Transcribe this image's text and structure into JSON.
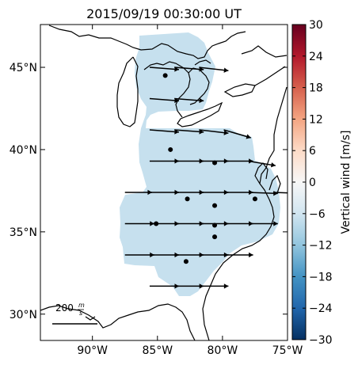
{
  "chart_data": {
    "type": "heatmap",
    "title": "2015/09/19 00:30:00 UT",
    "xlim": [
      -94,
      -75
    ],
    "ylim": [
      28.4,
      47.6
    ],
    "x_ticks": [
      {
        "value": -90,
        "label": "90°W"
      },
      {
        "value": -85,
        "label": "85°W"
      },
      {
        "value": -80,
        "label": "80°W"
      },
      {
        "value": -75,
        "label": "75°W"
      }
    ],
    "y_ticks": [
      {
        "value": 30,
        "label": "30°N"
      },
      {
        "value": 35,
        "label": "35°N"
      },
      {
        "value": 40,
        "label": "40°N"
      },
      {
        "value": 45,
        "label": "45°N"
      }
    ],
    "field_value": -7,
    "field_color": "#c6e0ee",
    "colorbar": {
      "label": "Vertical wind [m/s]",
      "min": -30,
      "max": 30,
      "ticks": [
        30,
        24,
        18,
        12,
        6,
        0,
        -6,
        -12,
        -18,
        -24,
        -30
      ],
      "tick_labels": [
        "30",
        "24",
        "18",
        "12",
        "6",
        "0",
        "−6",
        "−12",
        "−18",
        "−24",
        "−30"
      ],
      "colors": [
        "#053061",
        "#2166ac",
        "#4393c3",
        "#92c5de",
        "#d1e5f0",
        "#f7f7f7",
        "#fddbc7",
        "#f4a582",
        "#d6604d",
        "#b2182b",
        "#67001f"
      ]
    },
    "scale_arrow": {
      "label_value": "200",
      "label_unit_num": "m",
      "label_unit_den": "s",
      "value": 200
    },
    "sites": [
      {
        "lon": -84.4,
        "lat": 44.5
      },
      {
        "lon": -84.0,
        "lat": 40.0
      },
      {
        "lon": -80.6,
        "lat": 39.2
      },
      {
        "lon": -82.7,
        "lat": 37.0
      },
      {
        "lon": -77.5,
        "lat": 37.0
      },
      {
        "lon": -80.6,
        "lat": 36.6
      },
      {
        "lon": -85.1,
        "lat": 35.5
      },
      {
        "lon": -80.6,
        "lat": 35.4
      },
      {
        "lon": -80.6,
        "lat": 34.7
      },
      {
        "lon": -82.8,
        "lat": 33.2
      }
    ],
    "vectors": [
      {
        "lon": -85.6,
        "lat": 45.0,
        "u": 130,
        "v": -10
      },
      {
        "lon": -83.7,
        "lat": 45.0,
        "u": 130,
        "v": -10
      },
      {
        "lon": -81.8,
        "lat": 45.0,
        "u": 130,
        "v": -15
      },
      {
        "lon": -85.6,
        "lat": 43.1,
        "u": 130,
        "v": -10
      },
      {
        "lon": -83.7,
        "lat": 43.1,
        "u": 130,
        "v": -10
      },
      {
        "lon": -85.6,
        "lat": 41.2,
        "u": 130,
        "v": -10
      },
      {
        "lon": -83.7,
        "lat": 41.2,
        "u": 130,
        "v": -10
      },
      {
        "lon": -81.8,
        "lat": 41.2,
        "u": 130,
        "v": -15
      },
      {
        "lon": -79.9,
        "lat": 41.2,
        "u": 120,
        "v": -35
      },
      {
        "lon": -85.6,
        "lat": 39.3,
        "u": 130,
        "v": 0
      },
      {
        "lon": -83.7,
        "lat": 39.3,
        "u": 130,
        "v": 0
      },
      {
        "lon": -81.8,
        "lat": 39.3,
        "u": 130,
        "v": 0
      },
      {
        "lon": -79.9,
        "lat": 39.3,
        "u": 130,
        "v": 0
      },
      {
        "lon": -78.0,
        "lat": 39.3,
        "u": 120,
        "v": -20
      },
      {
        "lon": -87.5,
        "lat": 37.4,
        "u": 120,
        "v": 0
      },
      {
        "lon": -85.6,
        "lat": 37.4,
        "u": 130,
        "v": 0
      },
      {
        "lon": -83.7,
        "lat": 37.4,
        "u": 130,
        "v": 0
      },
      {
        "lon": -81.8,
        "lat": 37.4,
        "u": 130,
        "v": 0
      },
      {
        "lon": -79.9,
        "lat": 37.4,
        "u": 130,
        "v": 0
      },
      {
        "lon": -78.0,
        "lat": 37.4,
        "u": 130,
        "v": -5
      },
      {
        "lon": -76.1,
        "lat": 37.4,
        "u": 130,
        "v": -5
      },
      {
        "lon": -87.5,
        "lat": 35.5,
        "u": 130,
        "v": 0
      },
      {
        "lon": -85.6,
        "lat": 35.5,
        "u": 130,
        "v": 0
      },
      {
        "lon": -83.7,
        "lat": 35.5,
        "u": 130,
        "v": 0
      },
      {
        "lon": -81.8,
        "lat": 35.5,
        "u": 130,
        "v": 0
      },
      {
        "lon": -79.9,
        "lat": 35.5,
        "u": 130,
        "v": 0
      },
      {
        "lon": -78.0,
        "lat": 35.5,
        "u": 130,
        "v": 0
      },
      {
        "lon": -87.5,
        "lat": 33.6,
        "u": 130,
        "v": 0
      },
      {
        "lon": -85.6,
        "lat": 33.6,
        "u": 130,
        "v": 0
      },
      {
        "lon": -83.7,
        "lat": 33.6,
        "u": 130,
        "v": 0
      },
      {
        "lon": -81.8,
        "lat": 33.6,
        "u": 130,
        "v": 0
      },
      {
        "lon": -79.9,
        "lat": 33.6,
        "u": 130,
        "v": 0
      },
      {
        "lon": -85.6,
        "lat": 31.7,
        "u": 130,
        "v": 0
      },
      {
        "lon": -83.7,
        "lat": 31.7,
        "u": 130,
        "v": 0
      },
      {
        "lon": -81.8,
        "lat": 31.7,
        "u": 130,
        "v": 0
      }
    ]
  }
}
